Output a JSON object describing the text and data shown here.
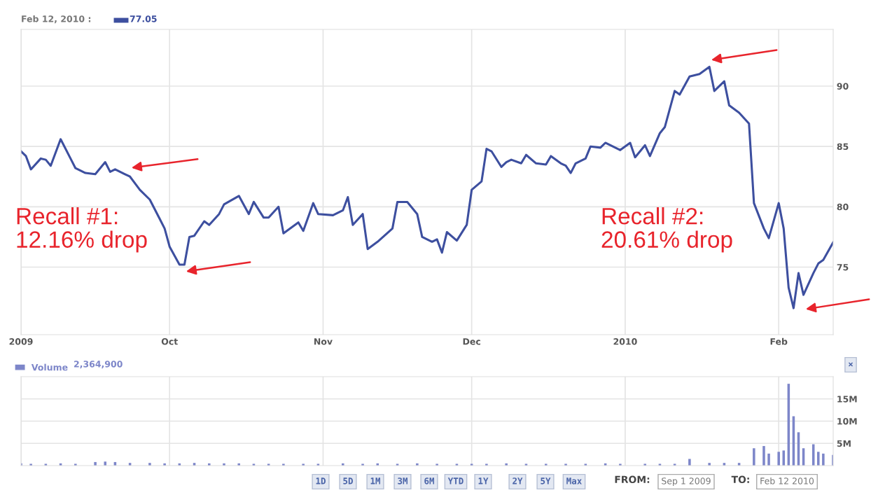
{
  "chart_data": [
    {
      "type": "line",
      "x": [
        "2009-09-01",
        "2009-09-02",
        "2009-09-03",
        "2009-09-05",
        "2009-09-06",
        "2009-09-07",
        "2009-09-09",
        "2009-09-11",
        "2009-09-12",
        "2009-09-14",
        "2009-09-16",
        "2009-09-18",
        "2009-09-19",
        "2009-09-20",
        "2009-09-22",
        "2009-09-23",
        "2009-09-25",
        "2009-09-27",
        "2009-09-29",
        "2009-09-30",
        "2009-10-01",
        "2009-10-03",
        "2009-10-04",
        "2009-10-05",
        "2009-10-06",
        "2009-10-08",
        "2009-10-09",
        "2009-10-11",
        "2009-10-12",
        "2009-10-15",
        "2009-10-17",
        "2009-10-18",
        "2009-10-20",
        "2009-10-21",
        "2009-10-23",
        "2009-10-24",
        "2009-10-27",
        "2009-10-28",
        "2009-10-30",
        "2009-10-31",
        "2009-11-03",
        "2009-11-05",
        "2009-11-06",
        "2009-11-07",
        "2009-11-09",
        "2009-11-10",
        "2009-11-12",
        "2009-11-15",
        "2009-11-16",
        "2009-11-18",
        "2009-11-20",
        "2009-11-21",
        "2009-11-23",
        "2009-11-24",
        "2009-11-25",
        "2009-11-26",
        "2009-11-28",
        "2009-11-30",
        "2009-12-01",
        "2009-12-03",
        "2009-12-04",
        "2009-12-05",
        "2009-12-07",
        "2009-12-08",
        "2009-12-09",
        "2009-12-11",
        "2009-12-12",
        "2009-12-14",
        "2009-12-16",
        "2009-12-17",
        "2009-12-19",
        "2009-12-20",
        "2009-12-21",
        "2009-12-22",
        "2009-12-24",
        "2009-12-25",
        "2009-12-27",
        "2009-12-28",
        "2009-12-30",
        "2009-12-31",
        "2010-01-02",
        "2010-01-03",
        "2010-01-05",
        "2010-01-06",
        "2010-01-08",
        "2010-01-09",
        "2010-01-11",
        "2010-01-12",
        "2010-01-14",
        "2010-01-16",
        "2010-01-18",
        "2010-01-19",
        "2010-01-21",
        "2010-01-22",
        "2010-01-24",
        "2010-01-26",
        "2010-01-27",
        "2010-01-29",
        "2010-01-30",
        "2010-02-01",
        "2010-02-02",
        "2010-02-03",
        "2010-02-04",
        "2010-02-05",
        "2010-02-06",
        "2010-02-08",
        "2010-02-09",
        "2010-02-10",
        "2010-02-12"
      ],
      "series": [
        {
          "color": "#3d4f9f",
          "values": [
            84.6,
            84.2,
            83.1,
            84.0,
            83.9,
            83.4,
            85.6,
            84.0,
            83.2,
            82.8,
            82.7,
            83.7,
            82.9,
            83.1,
            82.7,
            82.5,
            81.4,
            80.6,
            79.0,
            78.2,
            76.7,
            75.2,
            75.2,
            77.5,
            77.6,
            78.8,
            78.5,
            79.4,
            80.2,
            80.9,
            79.4,
            80.4,
            79.1,
            79.1,
            80.0,
            77.8,
            78.7,
            78.0,
            80.3,
            79.4,
            79.3,
            79.7,
            80.8,
            78.5,
            79.4,
            76.5,
            77.1,
            78.2,
            80.4,
            80.4,
            79.4,
            77.5,
            77.1,
            77.3,
            76.2,
            77.9,
            77.2,
            78.5,
            81.4,
            82.1,
            84.8,
            84.6,
            83.3,
            83.7,
            83.9,
            83.6,
            84.3,
            83.6,
            83.5,
            84.2,
            83.6,
            83.4,
            82.8,
            83.6,
            84.0,
            85.0,
            84.9,
            85.3,
            84.9,
            84.7,
            85.3,
            84.1,
            85.1,
            84.2,
            86.1,
            86.6,
            89.6,
            89.3,
            90.8,
            91.0,
            91.6,
            89.6,
            90.4,
            88.4,
            87.8,
            86.9,
            80.3,
            78.2,
            77.4,
            80.3,
            78.2,
            73.3,
            71.6,
            74.5,
            72.7,
            74.5,
            75.3,
            75.6,
            77.05
          ]
        }
      ],
      "xlim": [
        "2009-09-01",
        "2010-02-12"
      ],
      "xticks": [
        {
          "value": "2009-09-01",
          "label": "2009"
        },
        {
          "value": "2009-10-01",
          "label": "Oct"
        },
        {
          "value": "2009-11-01",
          "label": "Nov"
        },
        {
          "value": "2009-12-01",
          "label": "Dec"
        },
        {
          "value": "2010-01-01",
          "label": "2010"
        },
        {
          "value": "2010-02-01",
          "label": "Feb"
        }
      ],
      "ylim": [
        69.4,
        94.7
      ],
      "yticks": [
        75,
        80,
        85,
        90
      ],
      "grid": true,
      "line_style": "solid",
      "annotations": [
        "Feb 12, 2010 :",
        "77.05",
        "Recall #1:\n12.16% drop",
        "Recall #2:\n20.61% drop"
      ]
    },
    {
      "type": "bar",
      "x": [
        "2009-09-01",
        "2009-09-03",
        "2009-09-06",
        "2009-09-09",
        "2009-09-12",
        "2009-09-16",
        "2009-09-18",
        "2009-09-20",
        "2009-09-23",
        "2009-09-27",
        "2009-09-30",
        "2009-10-03",
        "2009-10-06",
        "2009-10-09",
        "2009-10-12",
        "2009-10-15",
        "2009-10-18",
        "2009-10-21",
        "2009-10-24",
        "2009-10-28",
        "2009-10-31",
        "2009-11-05",
        "2009-11-09",
        "2009-11-12",
        "2009-11-16",
        "2009-11-20",
        "2009-11-24",
        "2009-11-28",
        "2009-12-01",
        "2009-12-04",
        "2009-12-08",
        "2009-12-12",
        "2009-12-16",
        "2009-12-20",
        "2009-12-24",
        "2009-12-28",
        "2009-12-31",
        "2010-01-05",
        "2010-01-08",
        "2010-01-11",
        "2010-01-14",
        "2010-01-18",
        "2010-01-21",
        "2010-01-24",
        "2010-01-27",
        "2010-01-29",
        "2010-01-30",
        "2010-02-01",
        "2010-02-02",
        "2010-02-03",
        "2010-02-04",
        "2010-02-05",
        "2010-02-06",
        "2010-02-08",
        "2010-02-09",
        "2010-02-10",
        "2010-02-12"
      ],
      "series": [
        {
          "name": "Volume",
          "color": "#7d86c9",
          "values": [
            0.5,
            0.4,
            0.4,
            0.5,
            0.4,
            0.8,
            0.9,
            0.8,
            0.6,
            0.6,
            0.5,
            0.5,
            0.6,
            0.5,
            0.5,
            0.5,
            0.4,
            0.4,
            0.4,
            0.4,
            0.4,
            0.5,
            0.4,
            0.5,
            0.4,
            0.5,
            0.4,
            0.4,
            0.4,
            0.4,
            0.5,
            0.4,
            0.4,
            0.4,
            0.4,
            0.5,
            0.4,
            0.4,
            0.4,
            0.4,
            1.5,
            0.6,
            0.6,
            0.6,
            3.9,
            4.4,
            2.7,
            3.1,
            3.4,
            18.4,
            11.1,
            7.5,
            3.9,
            4.8,
            3.1,
            2.7,
            2.4
          ]
        }
      ],
      "xlim": [
        "2009-09-01",
        "2010-02-12"
      ],
      "xticks": [
        {
          "value": "2009-09-01",
          "label": null
        },
        {
          "value": "2009-10-01",
          "label": null
        },
        {
          "value": "2009-11-01",
          "label": null
        },
        {
          "value": "2009-12-01",
          "label": null
        },
        {
          "value": "2010-01-01",
          "label": null
        },
        {
          "value": "2010-02-01",
          "label": null
        }
      ],
      "ylim": [
        0,
        20
      ],
      "yticks": [
        {
          "value": 5,
          "label": "5M"
        },
        {
          "value": 10,
          "label": "10M"
        },
        {
          "value": 15,
          "label": "15M"
        }
      ],
      "grid": true,
      "legend": "top left",
      "tick_labels": "y",
      "annotations": [
        "2,364,900",
        "1D",
        "5D",
        "1M",
        "3M",
        "6M",
        "YTD",
        "1Y",
        "2Y",
        "5Y",
        "Max",
        "FROM:",
        "Sep 1 2009",
        "TO:",
        "Feb 12 2010",
        "×"
      ]
    }
  ]
}
